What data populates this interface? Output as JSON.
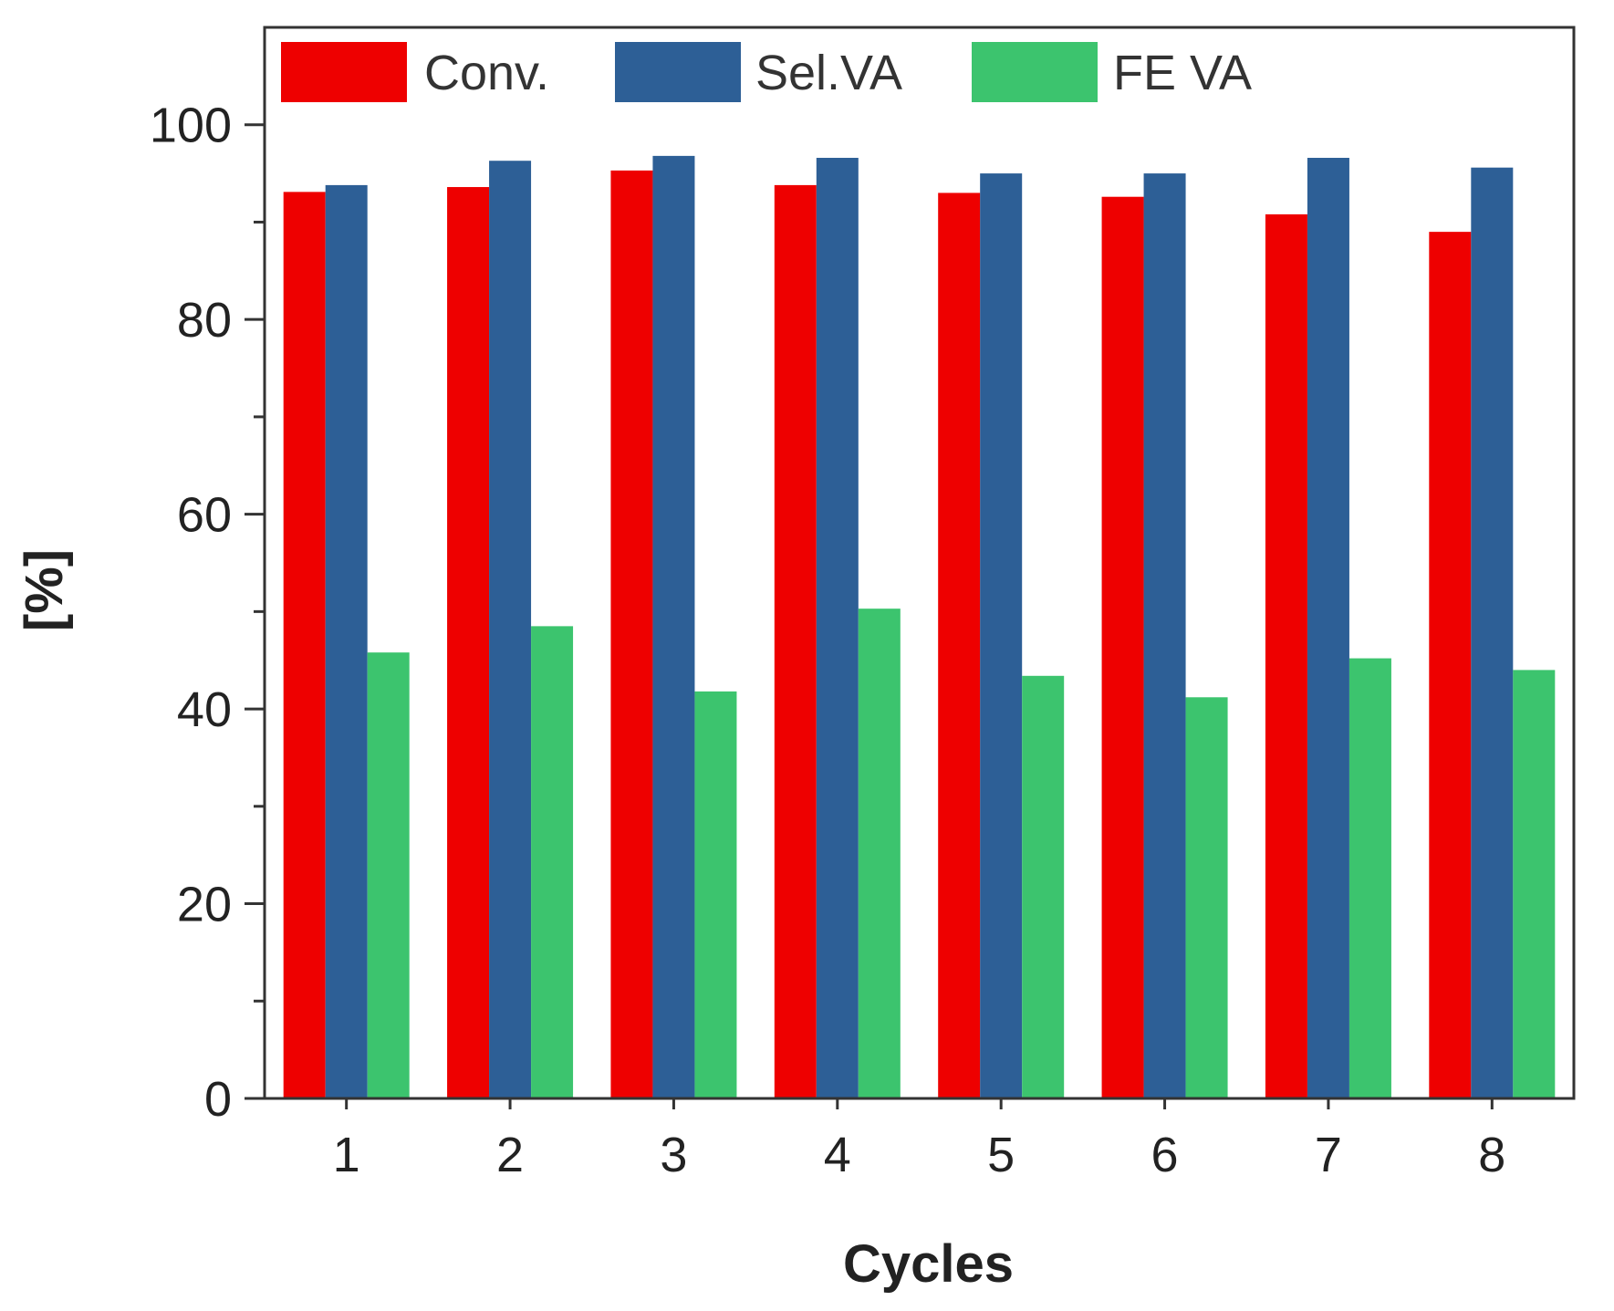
{
  "chart_data": {
    "type": "bar",
    "title": "",
    "xlabel": "Cycles",
    "ylabel": "[%]",
    "categories": [
      "1",
      "2",
      "3",
      "4",
      "5",
      "6",
      "7",
      "8"
    ],
    "ylim": [
      0,
      110
    ],
    "yticks": [
      0,
      20,
      40,
      60,
      80,
      100
    ],
    "yticks_minor": [
      10,
      30,
      50,
      70,
      90
    ],
    "grid": false,
    "legend_position": "top",
    "series": [
      {
        "name": "Conv.",
        "color": "#ee0000",
        "values": [
          93.1,
          93.6,
          95.3,
          93.8,
          93.0,
          92.6,
          90.8,
          89.0
        ]
      },
      {
        "name": "Sel.VA",
        "color": "#2d5f96",
        "values": [
          93.8,
          96.3,
          96.8,
          96.6,
          95.0,
          95.0,
          96.6,
          95.6
        ]
      },
      {
        "name": "FE VA",
        "color": "#3cc46e",
        "values": [
          45.8,
          48.5,
          41.8,
          50.3,
          43.4,
          41.2,
          45.2,
          44.0
        ]
      }
    ]
  }
}
